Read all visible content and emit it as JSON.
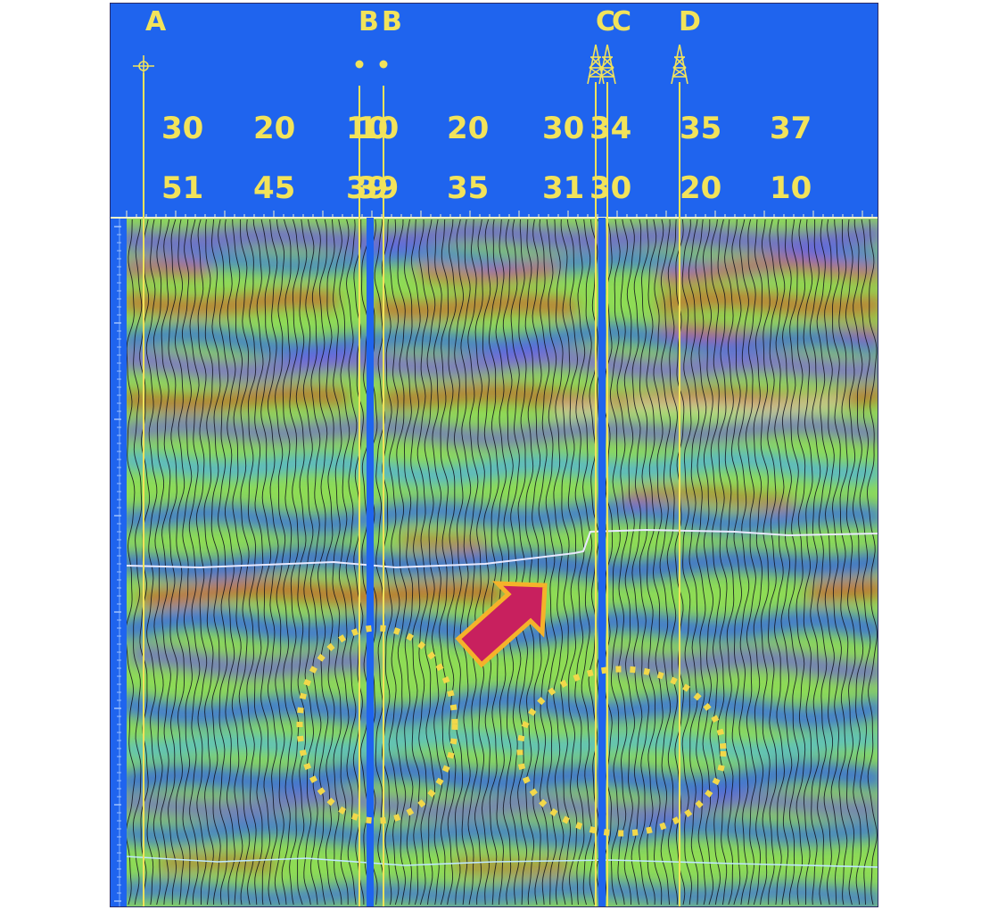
{
  "section": {
    "wells": [
      {
        "label": "A",
        "symbol": "location"
      },
      {
        "label": "B",
        "symbol": "dot"
      },
      {
        "label": "B",
        "symbol": "dot"
      },
      {
        "label": "C",
        "symbol": "derrick"
      },
      {
        "label": "C",
        "symbol": "derrick"
      },
      {
        "label": "D",
        "symbol": "derrick"
      }
    ],
    "header_row1": [
      "30",
      "20",
      "10",
      "10",
      "20",
      "30",
      "34",
      "35",
      "37"
    ],
    "header_row2": [
      "51",
      "45",
      "39",
      "39",
      "35",
      "31",
      "30",
      "20",
      "10"
    ]
  },
  "colors": {
    "background": "#1f64ee",
    "annotation": "#f2d84a",
    "arrow_fill": "#c8205e",
    "arrow_edge": "#f5b22a"
  }
}
